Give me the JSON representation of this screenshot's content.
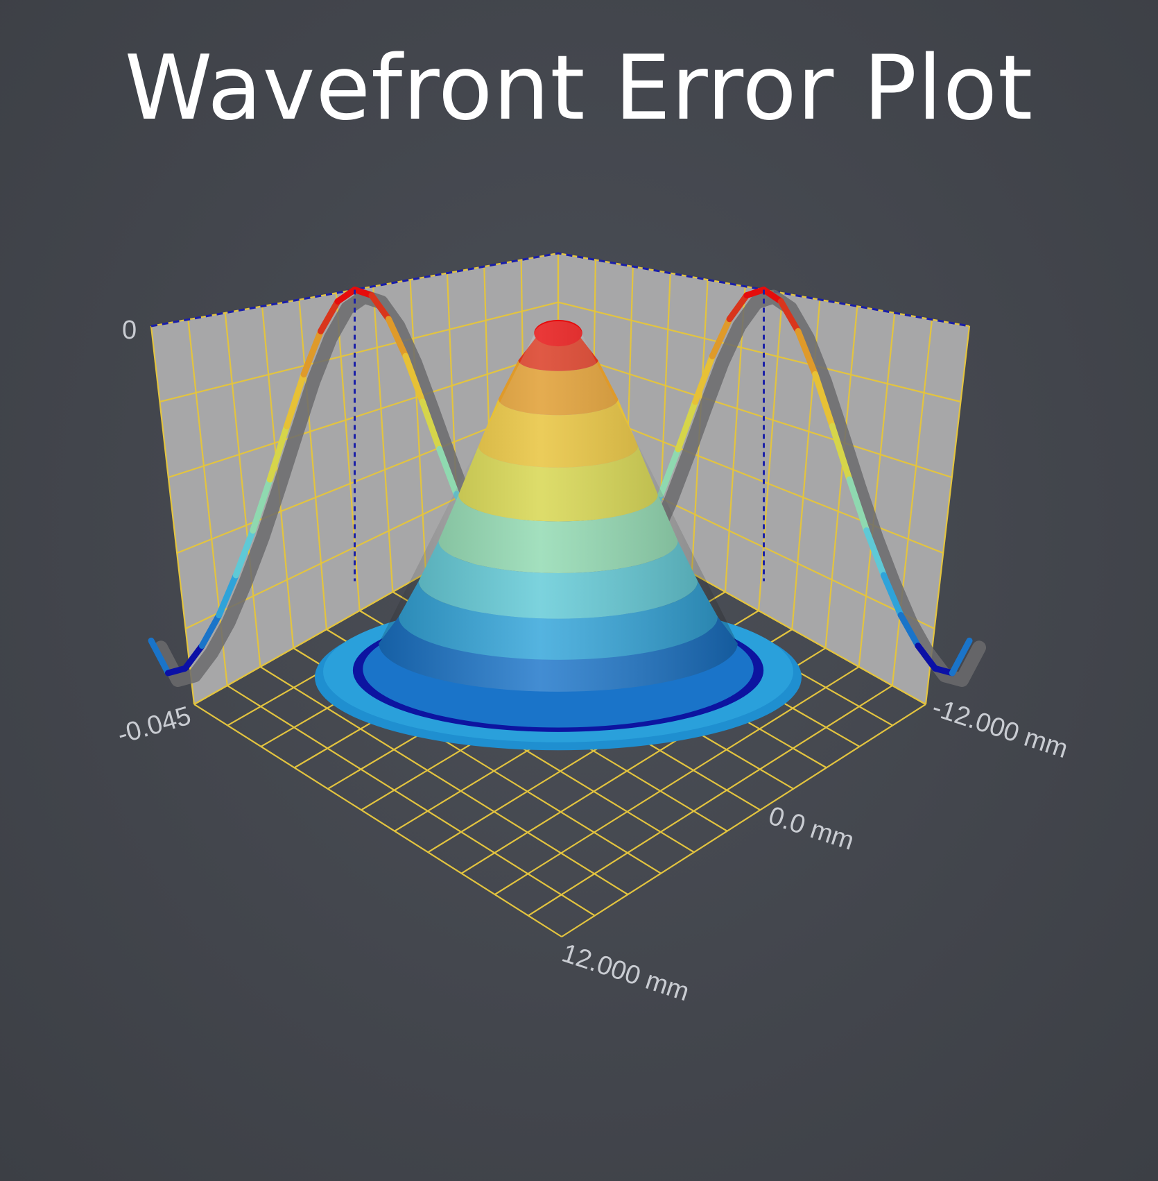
{
  "chart_data": {
    "type": "surface3d",
    "title": "Wavefront Error Plot",
    "z_axis": {
      "range": [
        -0.045,
        0
      ],
      "ticks": [
        "0",
        "-0.045"
      ]
    },
    "x_axis": {
      "range": [
        -12.0,
        12.0
      ],
      "unit": "mm",
      "ticks": [
        "-12.000 mm",
        "0.0 mm",
        "12.000 mm"
      ]
    },
    "y_axis": {
      "range": [
        -12.0,
        12.0
      ],
      "unit": "mm"
    },
    "grid": true,
    "surface": {
      "shape": "radially symmetric peak with outer rim",
      "radius_mm": [
        0,
        1,
        2,
        3,
        4,
        5,
        6,
        7,
        8,
        9,
        10,
        10.5,
        11,
        11.5,
        12
      ],
      "z": [
        0,
        -0.0011,
        -0.0045,
        -0.0096,
        -0.0158,
        -0.0222,
        -0.0283,
        -0.0336,
        -0.0383,
        -0.0418,
        -0.0443,
        -0.045,
        -0.0445,
        -0.042,
        -0.04
      ]
    },
    "projections": [
      {
        "name": "x-z wall profile",
        "x": [
          -12,
          -11,
          -10,
          -9,
          -8,
          -7,
          -6,
          -5,
          -4,
          -3,
          -2,
          -1,
          0,
          1,
          2,
          3,
          4,
          5,
          6,
          7,
          8,
          9,
          10,
          11,
          12
        ],
        "z": [
          -0.04,
          -0.0445,
          -0.0443,
          -0.0418,
          -0.0383,
          -0.0336,
          -0.0283,
          -0.0222,
          -0.0158,
          -0.0096,
          -0.0045,
          -0.0011,
          0,
          -0.0011,
          -0.0045,
          -0.0096,
          -0.0158,
          -0.0222,
          -0.0283,
          -0.0336,
          -0.0383,
          -0.0418,
          -0.0443,
          -0.0445,
          -0.04
        ]
      },
      {
        "name": "y-z wall profile",
        "y": [
          -12,
          -11,
          -10,
          -9,
          -8,
          -7,
          -6,
          -5,
          -4,
          -3,
          -2,
          -1,
          0,
          1,
          2,
          3,
          4,
          5,
          6,
          7,
          8,
          9,
          10,
          11,
          12
        ],
        "z": [
          -0.04,
          -0.0445,
          -0.0443,
          -0.0418,
          -0.0383,
          -0.0336,
          -0.0283,
          -0.0222,
          -0.0158,
          -0.0096,
          -0.0045,
          -0.0011,
          0,
          -0.0011,
          -0.0045,
          -0.0096,
          -0.0158,
          -0.0222,
          -0.0283,
          -0.0336,
          -0.0383,
          -0.0418,
          -0.0443,
          -0.0445,
          -0.04
        ]
      }
    ],
    "colors": {
      "background": "#43464d",
      "wall": "#a7a7a8",
      "grid": "#e3c43f",
      "dash": "#1a1fa8",
      "colormap": [
        "#0b10a6",
        "#1a74c9",
        "#2fa3d9",
        "#5fc9d6",
        "#8fd9b0",
        "#8ccf3f",
        "#d6d54a",
        "#e7c136",
        "#df9a2a",
        "#d9351c",
        "#e50c0c"
      ]
    }
  }
}
